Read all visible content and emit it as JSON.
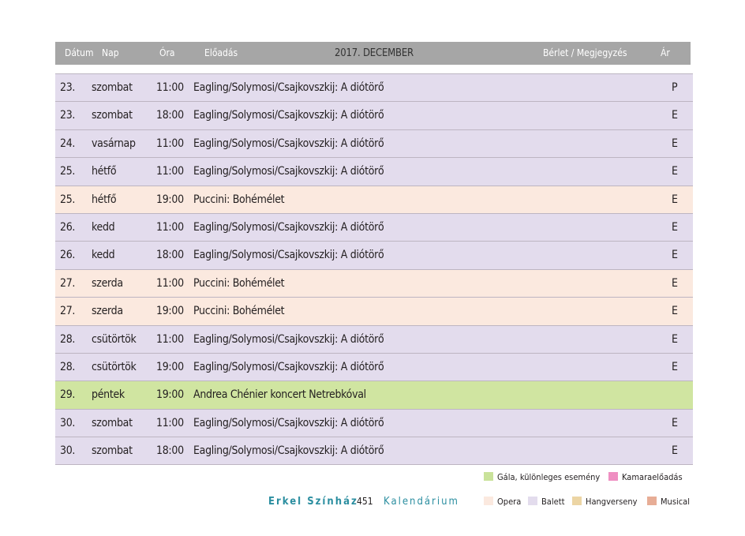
{
  "header": {
    "date": "Dátum",
    "day": "Nap",
    "time": "Óra",
    "performance": "Előadás",
    "month": "2017. DECEMBER",
    "subscription": "Bérlet / Megjegyzés",
    "price": "Ár"
  },
  "rows": [
    {
      "date": "23.",
      "day": "szombat",
      "time": "11:00",
      "title": "Eagling/Solymosi/Csajkovszkij: A diótörő",
      "price": "P",
      "category": "balett"
    },
    {
      "date": "23.",
      "day": "szombat",
      "time": "18:00",
      "title": "Eagling/Solymosi/Csajkovszkij: A diótörő",
      "price": "E",
      "category": "balett"
    },
    {
      "date": "24.",
      "day": "vasárnap",
      "time": "11:00",
      "title": "Eagling/Solymosi/Csajkovszkij: A diótörő",
      "price": "E",
      "category": "balett"
    },
    {
      "date": "25.",
      "day": "hétfő",
      "time": "11:00",
      "title": "Eagling/Solymosi/Csajkovszkij: A diótörő",
      "price": "E",
      "category": "balett"
    },
    {
      "date": "25.",
      "day": "hétfő",
      "time": "19:00",
      "title": "Puccini: Bohémélet",
      "price": "E",
      "category": "opera"
    },
    {
      "date": "26.",
      "day": "kedd",
      "time": "11:00",
      "title": "Eagling/Solymosi/Csajkovszkij: A diótörő",
      "price": "E",
      "category": "balett"
    },
    {
      "date": "26.",
      "day": "kedd",
      "time": "18:00",
      "title": "Eagling/Solymosi/Csajkovszkij: A diótörő",
      "price": "E",
      "category": "balett"
    },
    {
      "date": "27.",
      "day": "szerda",
      "time": "11:00",
      "title": "Puccini: Bohémélet",
      "price": "E",
      "category": "opera"
    },
    {
      "date": "27.",
      "day": "szerda",
      "time": "19:00",
      "title": "Puccini: Bohémélet",
      "price": "E",
      "category": "opera"
    },
    {
      "date": "28.",
      "day": "csütörtök",
      "time": "11:00",
      "title": "Eagling/Solymosi/Csajkovszkij: A diótörő",
      "price": "E",
      "category": "balett"
    },
    {
      "date": "28.",
      "day": "csütörtök",
      "time": "19:00",
      "title": "Eagling/Solymosi/Csajkovszkij: A diótörő",
      "price": "E",
      "category": "balett"
    },
    {
      "date": "29.",
      "day": "péntek",
      "time": "19:00",
      "title": "Andrea Chénier koncert Netrebkóval",
      "price": "",
      "category": "gala"
    },
    {
      "date": "30.",
      "day": "szombat",
      "time": "11:00",
      "title": "Eagling/Solymosi/Csajkovszkij: A diótörő",
      "price": "E",
      "category": "balett"
    },
    {
      "date": "30.",
      "day": "szombat",
      "time": "18:00",
      "title": "Eagling/Solymosi/Csajkovszkij: A diótörő",
      "price": "E",
      "category": "balett"
    }
  ],
  "legend": {
    "gala": {
      "label": "Gála, különleges esemény",
      "color": "#c9e29a"
    },
    "kamara": {
      "label": "Kamaraelőadás",
      "color": "#ef8fc2"
    },
    "opera": {
      "label": "Opera",
      "color": "#fbe9df"
    },
    "balett": {
      "label": "Balett",
      "color": "#e3dced"
    },
    "hangverseny": {
      "label": "Hangverseny",
      "color": "#ecd5a4"
    },
    "musical": {
      "label": "Musical",
      "color": "#e7ad96"
    }
  },
  "footer": {
    "venue": "Erkel Színház",
    "page": "451",
    "section": "Kalendárium"
  }
}
